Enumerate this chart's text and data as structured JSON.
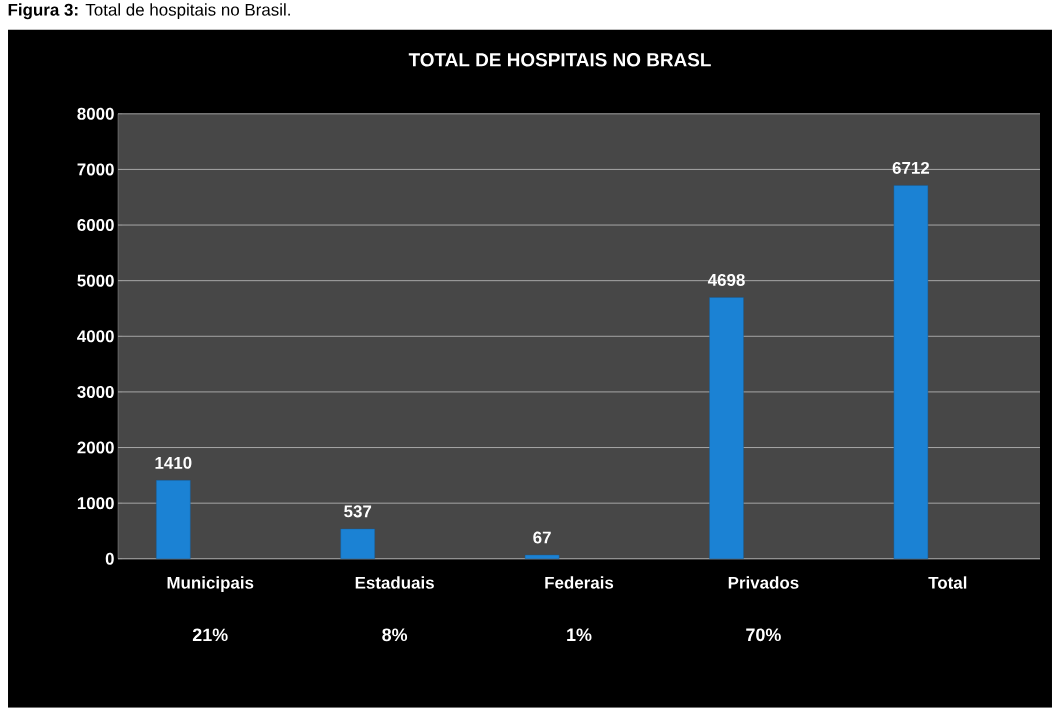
{
  "chart_data": {
    "type": "bar",
    "title": "TOTAL DE HOSPITAIS NO BRASL",
    "categories": [
      "Municipais",
      "Estaduais",
      "Federais",
      "Privados",
      "Total"
    ],
    "values": [
      1410,
      537,
      67,
      4698,
      6712
    ],
    "color": "#1b82d4",
    "ylim": [
      0,
      8000
    ],
    "yticks": [
      0,
      1000,
      2000,
      3000,
      4000,
      5000,
      6000,
      7000,
      8000
    ],
    "grid": "y",
    "data_labels": true,
    "annotations": [
      "**Figura 3:** Total de hospitais no Brasil.",
      "21%",
      "8%",
      "1%",
      "70%"
    ]
  }
}
